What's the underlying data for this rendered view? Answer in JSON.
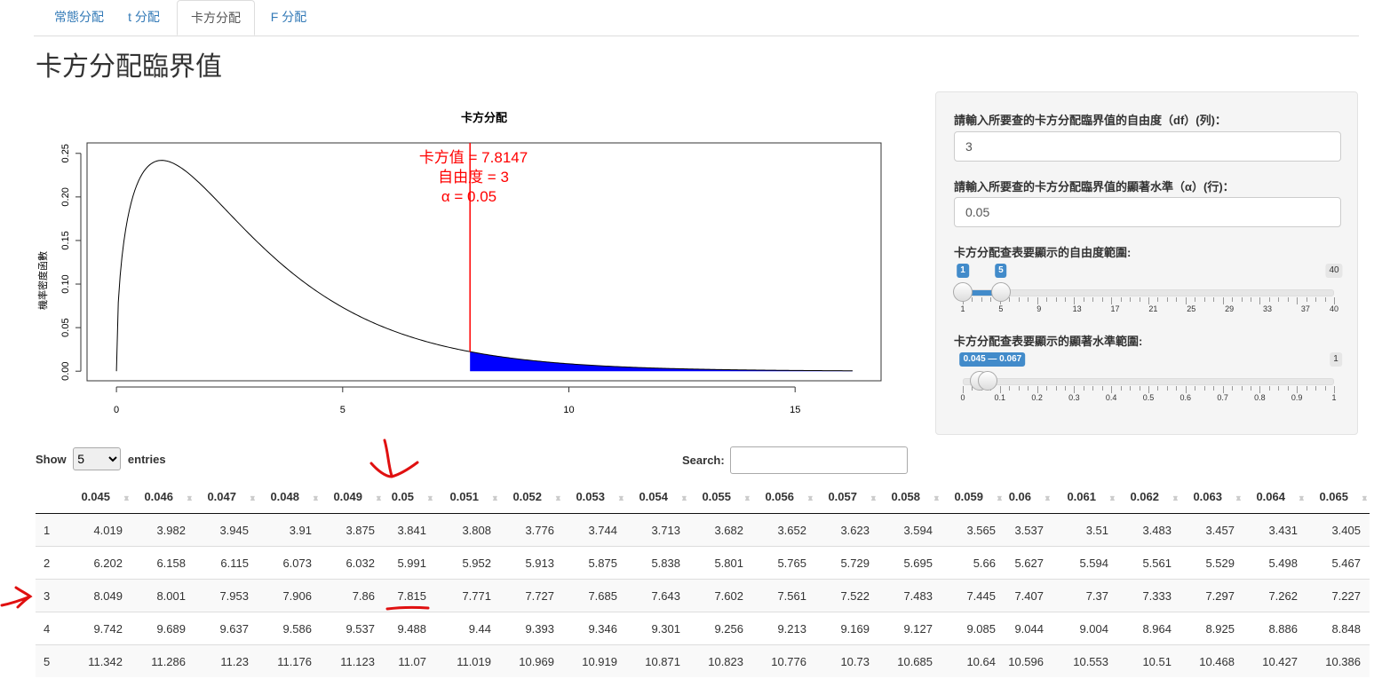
{
  "tabs": [
    {
      "label": "常態分配",
      "active": false
    },
    {
      "label": "t 分配",
      "active": false
    },
    {
      "label": "卡方分配",
      "active": true
    },
    {
      "label": "F 分配",
      "active": false
    }
  ],
  "page_title": "卡方分配臨界值",
  "plot": {
    "title": "卡方分配",
    "ylabel": "機率密度函數",
    "x_ticks": [
      "0",
      "5",
      "10",
      "15"
    ],
    "y_ticks": [
      "0.00",
      "0.05",
      "0.10",
      "0.15",
      "0.20",
      "0.25"
    ],
    "annotation_line1": "卡方值 =  7.8147",
    "annotation_line2": "自由度 =  3",
    "annotation_line3": "α =  0.05",
    "line_color": "#ff0000",
    "fill_color": "#0000ff"
  },
  "chart_data": {
    "type": "area",
    "title": "卡方分配",
    "xlabel": "",
    "ylabel": "機率密度函數",
    "df": 3,
    "alpha": 0.05,
    "critical_value": 7.8147,
    "xlim": [
      0,
      16.27
    ],
    "ylim": [
      0,
      0.25
    ],
    "x": [
      0,
      0.25,
      0.5,
      1,
      1.5,
      2,
      3,
      4,
      5,
      6,
      7,
      7.8147,
      9,
      10,
      12,
      14,
      16.27
    ],
    "y": [
      0,
      0.176,
      0.22,
      0.242,
      0.231,
      0.208,
      0.154,
      0.108,
      0.073,
      0.048,
      0.032,
      0.022,
      0.013,
      0.008,
      0.003,
      0.001,
      0.0004
    ]
  },
  "sidebar": {
    "df_label": "請輸入所要查的卡方分配臨界值的自由度（df）(列)：",
    "df_value": "3",
    "alpha_label": "請輸入所要查的卡方分配臨界值的顯著水準（α）(行)：",
    "alpha_value": "0.05",
    "df_range_label": "卡方分配查表要顯示的自由度範圍:",
    "df_range": {
      "min": 1,
      "max": 40,
      "from": 1,
      "to": 5,
      "from_label": "1",
      "to_label": "5",
      "max_label": "40",
      "tick_labels": [
        "1",
        "5",
        "9",
        "13",
        "17",
        "21",
        "25",
        "29",
        "33",
        "37",
        "40"
      ]
    },
    "alpha_range_label": "卡方分配查表要顯示的顯著水準範圍:",
    "alpha_range": {
      "min": 0,
      "max": 1,
      "from": 0.045,
      "to": 0.067,
      "value_label": "0.045 — 0.067",
      "max_label": "1",
      "tick_labels": [
        "0",
        "0.1",
        "0.2",
        "0.3",
        "0.4",
        "0.5",
        "0.6",
        "0.7",
        "0.8",
        "0.9",
        "1"
      ]
    }
  },
  "table_controls": {
    "show_label": "Show",
    "entries_value": "5",
    "entries_label": "entries",
    "search_label": "Search:"
  },
  "table": {
    "columns": [
      "0.045",
      "0.046",
      "0.047",
      "0.048",
      "0.049",
      "0.05",
      "0.051",
      "0.052",
      "0.053",
      "0.054",
      "0.055",
      "0.056",
      "0.057",
      "0.058",
      "0.059",
      "0.06",
      "0.061",
      "0.062",
      "0.063",
      "0.064",
      "0.065"
    ],
    "rows": [
      {
        "idx": "1",
        "cells": [
          "4.019",
          "3.982",
          "3.945",
          "3.91",
          "3.875",
          "3.841",
          "3.808",
          "3.776",
          "3.744",
          "3.713",
          "3.682",
          "3.652",
          "3.623",
          "3.594",
          "3.565",
          "3.537",
          "3.51",
          "3.483",
          "3.457",
          "3.431",
          "3.405"
        ]
      },
      {
        "idx": "2",
        "cells": [
          "6.202",
          "6.158",
          "6.115",
          "6.073",
          "6.032",
          "5.991",
          "5.952",
          "5.913",
          "5.875",
          "5.838",
          "5.801",
          "5.765",
          "5.729",
          "5.695",
          "5.66",
          "5.627",
          "5.594",
          "5.561",
          "5.529",
          "5.498",
          "5.467"
        ]
      },
      {
        "idx": "3",
        "cells": [
          "8.049",
          "8.001",
          "7.953",
          "7.906",
          "7.86",
          "7.815",
          "7.771",
          "7.727",
          "7.685",
          "7.643",
          "7.602",
          "7.561",
          "7.522",
          "7.483",
          "7.445",
          "7.407",
          "7.37",
          "7.333",
          "7.297",
          "7.262",
          "7.227"
        ]
      },
      {
        "idx": "4",
        "cells": [
          "9.742",
          "9.689",
          "9.637",
          "9.586",
          "9.537",
          "9.488",
          "9.44",
          "9.393",
          "9.346",
          "9.301",
          "9.256",
          "9.213",
          "9.169",
          "9.127",
          "9.085",
          "9.044",
          "9.004",
          "8.964",
          "8.925",
          "8.886",
          "8.848"
        ]
      },
      {
        "idx": "5",
        "cells": [
          "11.342",
          "11.286",
          "11.23",
          "11.176",
          "11.123",
          "11.07",
          "11.019",
          "10.969",
          "10.919",
          "10.871",
          "10.823",
          "10.776",
          "10.73",
          "10.685",
          "10.64",
          "10.596",
          "10.553",
          "10.51",
          "10.468",
          "10.427",
          "10.386"
        ]
      }
    ]
  }
}
